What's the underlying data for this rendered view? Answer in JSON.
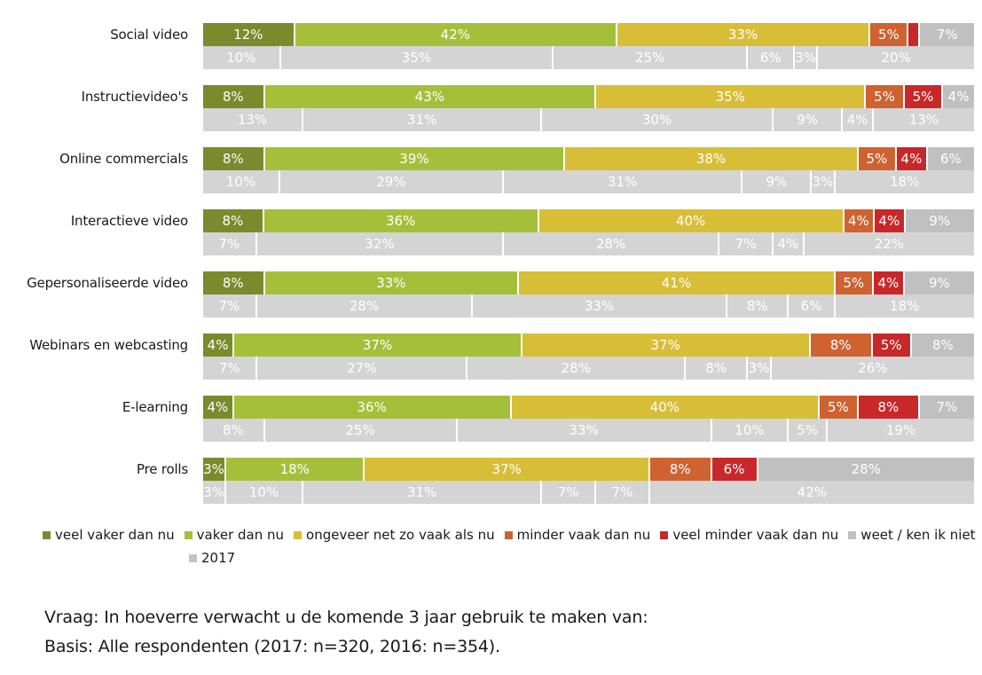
{
  "chart_data": {
    "type": "bar",
    "orientation": "horizontal",
    "stacked": true,
    "normalized_percent": true,
    "title": "",
    "xlabel": "",
    "ylabel": "",
    "xlim": [
      0,
      100
    ],
    "grid": false,
    "legend_position": "bottom",
    "categories": [
      "Social video",
      "Instructievideo's",
      "Online commercials",
      "Interactieve video",
      "Gepersonaliseerde video",
      "Webinars en webcasting",
      "E-learning",
      "Pre rolls"
    ],
    "series": [
      {
        "name": "veel vaker dan nu",
        "color": "#7a8a2c",
        "values": [
          12,
          8,
          8,
          8,
          8,
          4,
          4,
          3
        ]
      },
      {
        "name": "vaker dan nu",
        "color": "#a6bf3a",
        "values": [
          42,
          43,
          39,
          36,
          33,
          37,
          36,
          18
        ]
      },
      {
        "name": "ongeveer net zo vaak als nu",
        "color": "#d8be36",
        "values": [
          33,
          35,
          38,
          40,
          41,
          37,
          40,
          37
        ]
      },
      {
        "name": "minder vaak dan nu",
        "color": "#cf6231",
        "values": [
          5,
          5,
          5,
          4,
          5,
          8,
          5,
          8
        ]
      },
      {
        "name": "veel minder vaak dan nu",
        "color": "#c8282a",
        "values": [
          1.5,
          5,
          4,
          4,
          4,
          5,
          8,
          6
        ]
      },
      {
        "name": "weet / ken ik niet",
        "color": "#c0c0c0",
        "values": [
          7,
          4,
          6,
          9,
          9,
          8,
          7,
          28
        ]
      }
    ],
    "series_labels": [
      [
        "12%",
        "8%",
        "8%",
        "8%",
        "8%",
        "4%",
        "4%",
        "3%"
      ],
      [
        "42%",
        "43%",
        "39%",
        "36%",
        "33%",
        "37%",
        "36%",
        "18%"
      ],
      [
        "33%",
        "35%",
        "38%",
        "40%",
        "41%",
        "37%",
        "40%",
        "37%"
      ],
      [
        "5%",
        "5%",
        "5%",
        "4%",
        "5%",
        "8%",
        "5%",
        "8%"
      ],
      [
        "",
        "5%",
        "4%",
        "4%",
        "4%",
        "5%",
        "8%",
        "6%"
      ],
      [
        "7%",
        "4%",
        "6%",
        "9%",
        "9%",
        "8%",
        "7%",
        "28%"
      ]
    ],
    "comparison": {
      "name": "2017",
      "color": "#d4d4d4",
      "values": [
        [
          10,
          35,
          25,
          6,
          3,
          20
        ],
        [
          13,
          31,
          30,
          9,
          4,
          13
        ],
        [
          10,
          29,
          31,
          9,
          3,
          18
        ],
        [
          7,
          32,
          28,
          7,
          4,
          22
        ],
        [
          7,
          28,
          33,
          8,
          6,
          18
        ],
        [
          7,
          27,
          28,
          8,
          3,
          26
        ],
        [
          8,
          25,
          33,
          10,
          5,
          19
        ],
        [
          3,
          10,
          31,
          7,
          7,
          42
        ]
      ],
      "labels": [
        [
          "10%",
          "35%",
          "25%",
          "6%",
          "3%",
          "20%"
        ],
        [
          "13%",
          "31%",
          "30%",
          "9%",
          "4%",
          "13%"
        ],
        [
          "10%",
          "29%",
          "31%",
          "9%",
          "3%",
          "18%"
        ],
        [
          "7%",
          "32%",
          "28%",
          "7%",
          "4%",
          "22%"
        ],
        [
          "7%",
          "28%",
          "33%",
          "8%",
          "6%",
          "18%"
        ],
        [
          "7%",
          "27%",
          "28%",
          "8%",
          "3%",
          "26%"
        ],
        [
          "8%",
          "25%",
          "33%",
          "10%",
          "5%",
          "19%"
        ],
        [
          "3%",
          "10%",
          "31%",
          "7%",
          "7%",
          "42%"
        ]
      ]
    }
  },
  "legend": {
    "items": [
      {
        "label": "veel vaker dan nu",
        "color": "#7a8a2c"
      },
      {
        "label": "vaker dan nu",
        "color": "#a6bf3a"
      },
      {
        "label": "ongeveer net zo vaak als nu",
        "color": "#d8be36"
      },
      {
        "label": "minder vaak dan nu",
        "color": "#cf6231"
      },
      {
        "label": "veel minder vaak dan nu",
        "color": "#c8282a"
      },
      {
        "label": "weet / ken ik niet",
        "color": "#c0c0c0"
      }
    ],
    "year_item": {
      "label": "2017",
      "color": "#c4c4c4"
    }
  },
  "footnote": {
    "question": "Vraag: In hoeverre verwacht u de komende 3 jaar gebruik te maken van:",
    "basis": "Basis: Alle respondenten (2017: n=320, 2016: n=354)."
  }
}
